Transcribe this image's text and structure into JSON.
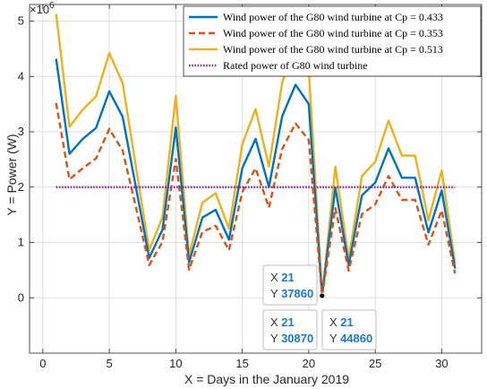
{
  "chart_data": {
    "type": "line",
    "xlabel": "X = Days in the January 2019",
    "ylabel": "Y = Power (W)",
    "exponent_label": "×10",
    "exponent_value": "6",
    "xlim": [
      -1,
      33
    ],
    "ylim": [
      -1000000,
      5300000
    ],
    "x_ticks": [
      0,
      5,
      10,
      15,
      20,
      25,
      30
    ],
    "y_ticks": [
      0,
      1000000,
      2000000,
      3000000,
      4000000,
      5000000
    ],
    "y_tick_labels": [
      "0",
      "1",
      "2",
      "3",
      "4",
      "5"
    ],
    "grid": true,
    "legend_position": "top-right",
    "x": [
      1,
      2,
      3,
      4,
      5,
      6,
      7,
      8,
      9,
      10,
      11,
      12,
      13,
      14,
      15,
      16,
      17,
      18,
      19,
      20,
      21,
      22,
      23,
      24,
      25,
      26,
      27,
      28,
      29,
      30,
      31
    ],
    "series": [
      {
        "name": "Wind power of the G80 wind turbine at Cp = 0.433",
        "color": "#0072bd",
        "style": "solid",
        "values": [
          4320000,
          2600000,
          2870000,
          3070000,
          3730000,
          3270000,
          2000000,
          720000,
          1230000,
          3080000,
          640000,
          1450000,
          1590000,
          1050000,
          2340000,
          2870000,
          2000000,
          3280000,
          3850000,
          3500000,
          37860,
          1990000,
          590000,
          1850000,
          2080000,
          2700000,
          2170000,
          2170000,
          1180000,
          1940000,
          530000
        ]
      },
      {
        "name": "Wind power of the G80 wind turbine at Cp = 0.353",
        "color": "#d95319",
        "style": "dashed",
        "values": [
          3520000,
          2140000,
          2340000,
          2520000,
          3050000,
          2660000,
          1640000,
          590000,
          1010000,
          2510000,
          510000,
          1190000,
          1300000,
          860000,
          1910000,
          2340000,
          1630000,
          2690000,
          3150000,
          2850000,
          30870,
          1620000,
          490000,
          1510000,
          1690000,
          2200000,
          1770000,
          1770000,
          960000,
          1580000,
          440000
        ]
      },
      {
        "name": "Wind power of the G80 wind turbine at Cp = 0.513",
        "color": "#edb120",
        "style": "solid",
        "values": [
          5130000,
          3090000,
          3400000,
          3640000,
          4420000,
          3880000,
          2370000,
          860000,
          1460000,
          3650000,
          770000,
          1720000,
          1890000,
          1250000,
          2770000,
          3410000,
          2370000,
          3890000,
          4570000,
          4150000,
          44860,
          2370000,
          700000,
          2200000,
          2460000,
          3200000,
          2570000,
          2570000,
          1400000,
          2300000,
          630000
        ]
      },
      {
        "name": "Rated power of G80 wind turbine",
        "color": "#7e2f8e",
        "style": "dotted",
        "values": [
          2000000,
          2000000,
          2000000,
          2000000,
          2000000,
          2000000,
          2000000,
          2000000,
          2000000,
          2000000,
          2000000,
          2000000,
          2000000,
          2000000,
          2000000,
          2000000,
          2000000,
          2000000,
          2000000,
          2000000,
          2000000,
          2000000,
          2000000,
          2000000,
          2000000,
          2000000,
          2000000,
          2000000,
          2000000,
          2000000,
          2000000
        ]
      }
    ],
    "annotations": [
      {
        "x_label": "X",
        "y_label": "Y",
        "x_value": "21",
        "y_value": "37860",
        "anchor": "above-left"
      },
      {
        "x_label": "X",
        "y_label": "Y",
        "x_value": "21",
        "y_value": "30870",
        "anchor": "below-left"
      },
      {
        "x_label": "X",
        "y_label": "Y",
        "x_value": "21",
        "y_value": "44860",
        "anchor": "below-right"
      }
    ],
    "marked_point": {
      "x": 21,
      "y": 37860
    }
  }
}
